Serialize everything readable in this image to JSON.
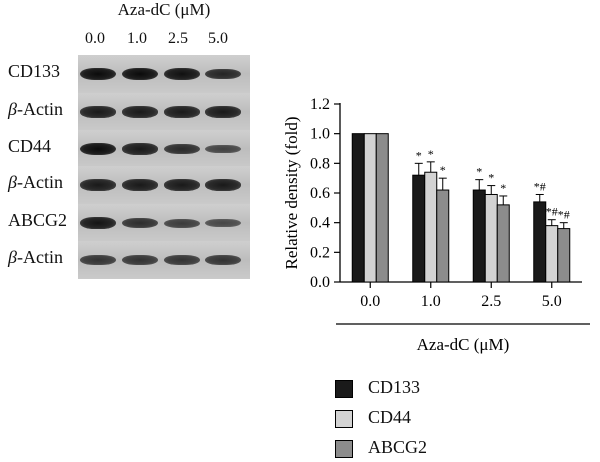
{
  "blot": {
    "header": "Aza-dC (μM)",
    "lanes": [
      "0.0",
      "1.0",
      "2.5",
      "5.0"
    ],
    "rows": [
      {
        "label": "CD133",
        "intensity": [
          1.0,
          1.0,
          0.95,
          0.75
        ]
      },
      {
        "label": "β-Actin",
        "intensity": [
          0.85,
          0.85,
          0.85,
          0.85
        ]
      },
      {
        "label": "CD44",
        "intensity": [
          1.0,
          0.85,
          0.7,
          0.45
        ]
      },
      {
        "label": "β-Actin",
        "intensity": [
          0.85,
          0.85,
          0.85,
          0.85
        ]
      },
      {
        "label": "ABCG2",
        "intensity": [
          0.9,
          0.65,
          0.5,
          0.4
        ]
      },
      {
        "label": "β-Actin",
        "intensity": [
          0.6,
          0.6,
          0.6,
          0.6
        ]
      }
    ]
  },
  "chart_data": {
    "type": "bar",
    "categories": [
      "0.0",
      "1.0",
      "2.5",
      "5.0"
    ],
    "series": [
      {
        "name": "CD133",
        "color": "#1a1a1a",
        "values": [
          1.0,
          0.72,
          0.62,
          0.54
        ],
        "errors": [
          0,
          0.08,
          0.07,
          0.05
        ],
        "annotations": [
          "",
          "*",
          "*",
          "*#"
        ]
      },
      {
        "name": "CD44",
        "color": "#d3d3d3",
        "values": [
          1.0,
          0.74,
          0.59,
          0.38
        ],
        "errors": [
          0,
          0.07,
          0.06,
          0.04
        ],
        "annotations": [
          "",
          "*",
          "*",
          "*#"
        ]
      },
      {
        "name": "ABCG2",
        "color": "#8c8c8c",
        "values": [
          1.0,
          0.62,
          0.52,
          0.36
        ],
        "errors": [
          0,
          0.08,
          0.06,
          0.04
        ],
        "annotations": [
          "",
          "*",
          "*",
          "*#"
        ]
      }
    ],
    "ylabel": "Relative density (fold)",
    "xlabel": "Aza-dC (μM)",
    "ylim": [
      0,
      1.2
    ],
    "yticks": [
      "0.0",
      "0.2",
      "0.4",
      "0.6",
      "0.8",
      "1.0",
      "1.2"
    ],
    "grid": false,
    "legend": "bottom"
  }
}
